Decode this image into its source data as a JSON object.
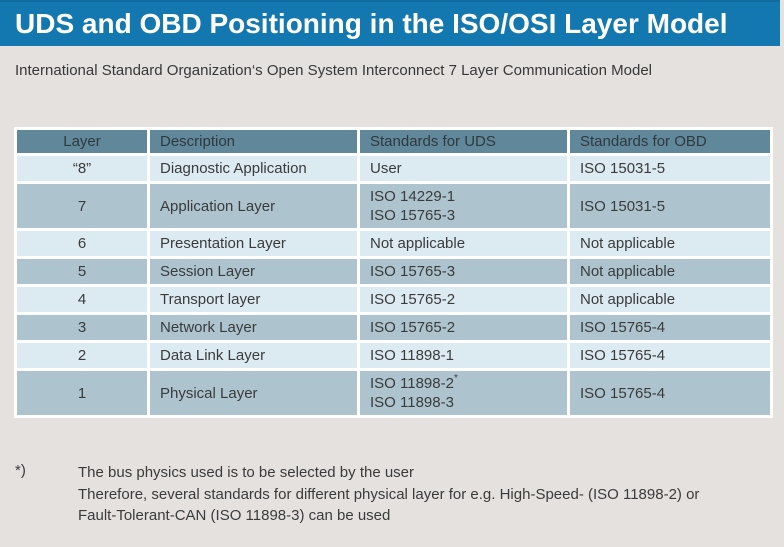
{
  "title": "UDS and OBD Positioning in the ISO/OSI Layer Model",
  "subtitle": "International Standard Organization‘s Open System Interconnect 7 Layer Communication Model",
  "colors": {
    "title_bar": "#1478b0",
    "title_bar_edge": "#116b9f",
    "page_bg": "#e4e1df",
    "header_bg": "#60889a",
    "row_light": "#dcebf2",
    "row_dark": "#adc4ce",
    "text": "#3b3b3b"
  },
  "table": {
    "headers": [
      "Layer",
      "Description",
      "Standards for UDS",
      "Standards for OBD"
    ],
    "rows": [
      {
        "layer": "“8”",
        "description": "Diagnostic Application",
        "uds": [
          "User"
        ],
        "obd": "ISO 15031-5",
        "shade": "light"
      },
      {
        "layer": "7",
        "description": "Application Layer",
        "uds": [
          "ISO 14229-1",
          "ISO 15765-3"
        ],
        "obd": "ISO 15031-5",
        "shade": "dark"
      },
      {
        "layer": "6",
        "description": "Presentation Layer",
        "uds": [
          "Not applicable"
        ],
        "obd": "Not applicable",
        "shade": "light"
      },
      {
        "layer": "5",
        "description": "Session Layer",
        "uds": [
          "ISO 15765-3"
        ],
        "obd": "Not applicable",
        "shade": "dark"
      },
      {
        "layer": "4",
        "description": "Transport layer",
        "uds": [
          "ISO 15765-2"
        ],
        "obd": "Not applicable",
        "shade": "light"
      },
      {
        "layer": "3",
        "description": "Network Layer",
        "uds": [
          "ISO 15765-2"
        ],
        "obd": "ISO 15765-4",
        "shade": "dark"
      },
      {
        "layer": "2",
        "description": "Data Link Layer",
        "uds": [
          "ISO 11898-1"
        ],
        "obd": "ISO 15765-4",
        "shade": "light"
      },
      {
        "layer": "1",
        "description": "Physical Layer",
        "uds": [
          "ISO 11898-2*",
          "ISO 11898-3"
        ],
        "obd": "ISO 15765-4",
        "shade": "dark"
      }
    ]
  },
  "footnote": {
    "marker": "*)",
    "lines": [
      "The bus physics used is to be selected by the user",
      "Therefore, several standards for different physical layer for e.g. High-Speed- (ISO 11898-2) or",
      "Fault-Tolerant-CAN (ISO 11898-3) can be used"
    ]
  }
}
